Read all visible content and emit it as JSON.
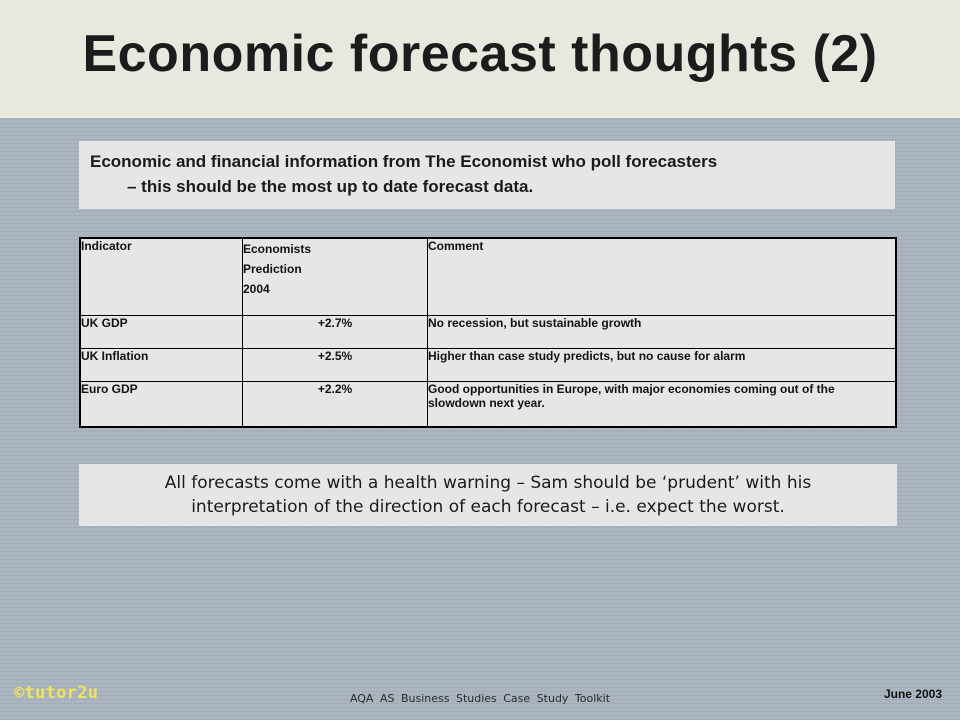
{
  "slide": {
    "title": "Economic forecast thoughts (2)"
  },
  "intro": {
    "line1": "Economic and financial information from The Economist who poll forecasters",
    "line2": "– this should be the most up to date forecast data."
  },
  "table": {
    "headers": {
      "indicator": "Indicator",
      "prediction_line1": "Economists",
      "prediction_line2": "Prediction",
      "prediction_line3": "2004",
      "comment": "Comment"
    },
    "rows": [
      {
        "indicator": "UK GDP",
        "prediction": "+2.7%",
        "comment": "No recession, but sustainable growth"
      },
      {
        "indicator": "UK Inflation",
        "prediction": "+2.5%",
        "comment": "Higher than case study predicts, but no cause for alarm"
      },
      {
        "indicator": "Euro GDP",
        "prediction": "+2.2%",
        "comment": "Good opportunities in Europe, with major economies coming out of the slowdown next year."
      }
    ]
  },
  "warning": {
    "line1": "All forecasts come with a health warning – Sam should be ‘prudent’ with his",
    "line2": "interpretation of the direction of each forecast – i.e. expect the worst."
  },
  "footer": {
    "logo": "©tutor2u",
    "center": "AQA AS Business Studies Case Study Toolkit",
    "date": "June 2003"
  },
  "colors": {
    "background": "#a9b4bf",
    "header_band": "#e9e8df",
    "panel": "#e6e6e6",
    "logo": "#f2e455"
  }
}
